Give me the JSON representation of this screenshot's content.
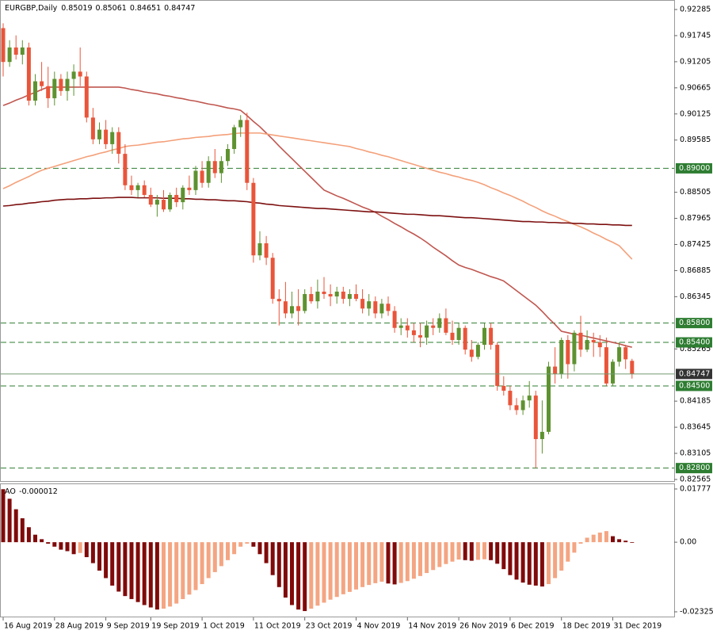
{
  "chart_data": [
    {
      "type": "candlestick",
      "symbol": "EURGBP,Daily",
      "categories": [
        "16 Aug 2019",
        null,
        null,
        null,
        null,
        null,
        null,
        null,
        "28 Aug 2019",
        null,
        null,
        null,
        null,
        null,
        null,
        null,
        "9 Sep 2019",
        null,
        null,
        null,
        null,
        null,
        null,
        "19 Sep 2019",
        null,
        null,
        null,
        null,
        null,
        null,
        null,
        "1 Oct 2019",
        null,
        null,
        null,
        null,
        null,
        null,
        null,
        "11 Oct 2019",
        null,
        null,
        null,
        null,
        null,
        null,
        null,
        "23 Oct 2019",
        null,
        null,
        null,
        null,
        null,
        null,
        null,
        "4 Nov 2019",
        null,
        null,
        null,
        null,
        null,
        null,
        null,
        "14 Nov 2019",
        null,
        null,
        null,
        null,
        null,
        null,
        null,
        "26 Nov 2019",
        null,
        null,
        null,
        null,
        null,
        null,
        null,
        "6 Dec 2019",
        null,
        null,
        null,
        null,
        null,
        null,
        null,
        "18 Dec 2019",
        null,
        null,
        null,
        null,
        null,
        null,
        null,
        "31 Dec 2019",
        null,
        null,
        null
      ],
      "ohlc": [
        [
          0.919,
          0.92,
          0.909,
          0.912
        ],
        [
          0.912,
          0.9165,
          0.911,
          0.915
        ],
        [
          0.915,
          0.9175,
          0.9125,
          0.9135
        ],
        [
          0.9135,
          0.9165,
          0.9115,
          0.915
        ],
        [
          0.915,
          0.916,
          0.903,
          0.904
        ],
        [
          0.904,
          0.9095,
          0.903,
          0.908
        ],
        [
          0.908,
          0.912,
          0.906,
          0.907
        ],
        [
          0.907,
          0.911,
          0.9025,
          0.9045
        ],
        [
          0.9045,
          0.91,
          0.903,
          0.9085
        ],
        [
          0.9085,
          0.9095,
          0.905,
          0.906
        ],
        [
          0.906,
          0.91,
          0.904,
          0.9085
        ],
        [
          0.9085,
          0.9115,
          0.905,
          0.91
        ],
        [
          0.91,
          0.915,
          0.907,
          0.909
        ],
        [
          0.909,
          0.91,
          0.8995,
          0.9005
        ],
        [
          0.9005,
          0.9025,
          0.895,
          0.896
        ],
        [
          0.896,
          0.8995,
          0.895,
          0.898
        ],
        [
          0.898,
          0.9,
          0.894,
          0.895
        ],
        [
          0.895,
          0.8985,
          0.893,
          0.8975
        ],
        [
          0.8975,
          0.8985,
          0.891,
          0.893
        ],
        [
          0.893,
          0.895,
          0.8855,
          0.8865
        ],
        [
          0.8865,
          0.8885,
          0.8845,
          0.8855
        ],
        [
          0.8855,
          0.887,
          0.884,
          0.8865
        ],
        [
          0.8865,
          0.8875,
          0.884,
          0.8845
        ],
        [
          0.8845,
          0.886,
          0.882,
          0.8825
        ],
        [
          0.8825,
          0.8845,
          0.88,
          0.8835
        ],
        [
          0.8835,
          0.8855,
          0.881,
          0.8815
        ],
        [
          0.8815,
          0.885,
          0.881,
          0.8845
        ],
        [
          0.8845,
          0.886,
          0.882,
          0.883
        ],
        [
          0.883,
          0.8865,
          0.8815,
          0.886
        ],
        [
          0.886,
          0.8885,
          0.8845,
          0.8855
        ],
        [
          0.8855,
          0.8905,
          0.8845,
          0.8895
        ],
        [
          0.8895,
          0.8915,
          0.886,
          0.887
        ],
        [
          0.887,
          0.8925,
          0.886,
          0.8915
        ],
        [
          0.8915,
          0.894,
          0.888,
          0.889
        ],
        [
          0.889,
          0.8925,
          0.887,
          0.8915
        ],
        [
          0.8915,
          0.895,
          0.8905,
          0.894
        ],
        [
          0.894,
          0.899,
          0.893,
          0.8985
        ],
        [
          0.8985,
          0.901,
          0.8965,
          0.9
        ],
        [
          0.9,
          0.9015,
          0.8855,
          0.887
        ],
        [
          0.887,
          0.888,
          0.8705,
          0.872
        ],
        [
          0.872,
          0.877,
          0.871,
          0.8745
        ],
        [
          0.8745,
          0.876,
          0.87,
          0.8715
        ],
        [
          0.8715,
          0.8725,
          0.862,
          0.863
        ],
        [
          0.863,
          0.865,
          0.8575,
          0.8625
        ],
        [
          0.8625,
          0.8665,
          0.859,
          0.86
        ],
        [
          0.86,
          0.8645,
          0.859,
          0.8615
        ],
        [
          0.8615,
          0.865,
          0.8575,
          0.8605
        ],
        [
          0.8605,
          0.865,
          0.86,
          0.864
        ],
        [
          0.864,
          0.8655,
          0.862,
          0.8625
        ],
        [
          0.8625,
          0.867,
          0.861,
          0.8645
        ],
        [
          0.8645,
          0.8675,
          0.863,
          0.864
        ],
        [
          0.864,
          0.866,
          0.8615,
          0.8635
        ],
        [
          0.8635,
          0.8655,
          0.862,
          0.8645
        ],
        [
          0.8645,
          0.8655,
          0.862,
          0.863
        ],
        [
          0.863,
          0.865,
          0.8615,
          0.864
        ],
        [
          0.864,
          0.866,
          0.8625,
          0.863
        ],
        [
          0.863,
          0.865,
          0.86,
          0.861
        ],
        [
          0.861,
          0.864,
          0.8595,
          0.8625
        ],
        [
          0.8625,
          0.8635,
          0.859,
          0.86
        ],
        [
          0.86,
          0.863,
          0.859,
          0.862
        ],
        [
          0.862,
          0.8635,
          0.8595,
          0.8605
        ],
        [
          0.8605,
          0.8615,
          0.856,
          0.857
        ],
        [
          0.857,
          0.859,
          0.8555,
          0.8575
        ],
        [
          0.8575,
          0.859,
          0.855,
          0.8565
        ],
        [
          0.8565,
          0.858,
          0.854,
          0.8555
        ],
        [
          0.8555,
          0.858,
          0.853,
          0.855
        ],
        [
          0.855,
          0.8585,
          0.8535,
          0.8575
        ],
        [
          0.8575,
          0.859,
          0.8555,
          0.857
        ],
        [
          0.857,
          0.86,
          0.856,
          0.859
        ],
        [
          0.859,
          0.861,
          0.8555,
          0.856
        ],
        [
          0.856,
          0.8585,
          0.8535,
          0.8545
        ],
        [
          0.8545,
          0.858,
          0.8535,
          0.857
        ],
        [
          0.857,
          0.8575,
          0.8515,
          0.8525
        ],
        [
          0.8525,
          0.8545,
          0.85,
          0.851
        ],
        [
          0.851,
          0.854,
          0.8505,
          0.8535
        ],
        [
          0.8535,
          0.858,
          0.8525,
          0.857
        ],
        [
          0.857,
          0.858,
          0.8525,
          0.8535
        ],
        [
          0.8535,
          0.854,
          0.844,
          0.845
        ],
        [
          0.845,
          0.847,
          0.843,
          0.844
        ],
        [
          0.844,
          0.845,
          0.84,
          0.841
        ],
        [
          0.841,
          0.8425,
          0.839,
          0.84
        ],
        [
          0.84,
          0.843,
          0.839,
          0.842
        ],
        [
          0.842,
          0.846,
          0.8405,
          0.843
        ],
        [
          0.843,
          0.844,
          0.828,
          0.834
        ],
        [
          0.834,
          0.842,
          0.831,
          0.8355
        ],
        [
          0.8355,
          0.85,
          0.835,
          0.849
        ],
        [
          0.849,
          0.853,
          0.8455,
          0.8475
        ],
        [
          0.8475,
          0.855,
          0.8465,
          0.8545
        ],
        [
          0.8545,
          0.8555,
          0.8465,
          0.8495
        ],
        [
          0.8495,
          0.8565,
          0.848,
          0.856
        ],
        [
          0.856,
          0.8595,
          0.851,
          0.8525
        ],
        [
          0.8525,
          0.8565,
          0.852,
          0.8545
        ],
        [
          0.8545,
          0.856,
          0.851,
          0.854
        ],
        [
          0.854,
          0.8555,
          0.851,
          0.853
        ],
        [
          0.853,
          0.855,
          0.845,
          0.8455
        ],
        [
          0.8455,
          0.8505,
          0.845,
          0.85
        ],
        [
          0.85,
          0.854,
          0.849,
          0.853
        ],
        [
          0.853,
          0.8535,
          0.8485,
          0.8505
        ],
        [
          0.85019,
          0.85061,
          0.84651,
          0.84747
        ]
      ],
      "up_color": "#5e9230",
      "down_color": "#e9553a",
      "series": [
        {
          "color": "#c0564f",
          "values": [
            0.903,
            0.9035,
            0.9041,
            0.9046,
            0.9052,
            0.9057,
            0.9063,
            0.9068,
            0.9068,
            0.9068,
            0.9068,
            0.9068,
            0.9068,
            0.9068,
            0.9068,
            0.9068,
            0.9068,
            0.9068,
            0.9068,
            0.9066,
            0.9063,
            0.9061,
            0.9058,
            0.9056,
            0.9054,
            0.9051,
            0.9049,
            0.9046,
            0.9044,
            0.9041,
            0.9039,
            0.9036,
            0.9033,
            0.9031,
            0.9028,
            0.9025,
            0.9023,
            0.902,
            0.9009,
            0.8997,
            0.8986,
            0.8973,
            0.896,
            0.8946,
            0.8933,
            0.892,
            0.8907,
            0.8894,
            0.8881,
            0.8868,
            0.8855,
            0.8849,
            0.8843,
            0.8838,
            0.8832,
            0.8826,
            0.882,
            0.8815,
            0.8809,
            0.8801,
            0.8794,
            0.8786,
            0.8779,
            0.8771,
            0.8764,
            0.8756,
            0.8747,
            0.8737,
            0.8728,
            0.8719,
            0.8709,
            0.87,
            0.8695,
            0.8691,
            0.8686,
            0.8681,
            0.8676,
            0.8672,
            0.8667,
            0.8657,
            0.8647,
            0.8637,
            0.8627,
            0.8617,
            0.8604,
            0.859,
            0.8577,
            0.8563,
            0.856,
            0.8557,
            0.8555,
            0.8552,
            0.8549,
            0.8546,
            0.8543,
            0.854,
            0.8537,
            0.8533,
            0.853
          ]
        },
        {
          "color": "#f4a07a",
          "values": [
            0.8858,
            0.8864,
            0.8871,
            0.8877,
            0.8883,
            0.889,
            0.8896,
            0.89,
            0.8904,
            0.8908,
            0.8912,
            0.8916,
            0.892,
            0.8924,
            0.8927,
            0.8931,
            0.8934,
            0.8938,
            0.8941,
            0.8945,
            0.8947,
            0.8948,
            0.895,
            0.8952,
            0.8954,
            0.8955,
            0.8957,
            0.8959,
            0.8961,
            0.8962,
            0.8964,
            0.8965,
            0.8966,
            0.8968,
            0.8969,
            0.897,
            0.8972,
            0.8973,
            0.8973,
            0.8973,
            0.8973,
            0.8971,
            0.8969,
            0.8967,
            0.8965,
            0.8963,
            0.8961,
            0.8959,
            0.8957,
            0.8955,
            0.8953,
            0.8951,
            0.8949,
            0.8947,
            0.8945,
            0.8941,
            0.8938,
            0.8934,
            0.8931,
            0.8927,
            0.8924,
            0.892,
            0.8916,
            0.8912,
            0.8908,
            0.8904,
            0.89,
            0.8896,
            0.8892,
            0.8889,
            0.8885,
            0.8882,
            0.8878,
            0.8875,
            0.8871,
            0.8866,
            0.886,
            0.8855,
            0.8849,
            0.8844,
            0.8838,
            0.8832,
            0.8825,
            0.8819,
            0.8812,
            0.8806,
            0.8801,
            0.8795,
            0.879,
            0.8784,
            0.8779,
            0.8773,
            0.8766,
            0.876,
            0.8753,
            0.8747,
            0.874,
            0.8726,
            0.8712
          ]
        },
        {
          "color": "#7d1010",
          "values": [
            0.8822,
            0.8823,
            0.8825,
            0.8826,
            0.8828,
            0.8829,
            0.8831,
            0.8832,
            0.8834,
            0.8835,
            0.8836,
            0.8836,
            0.8837,
            0.8837,
            0.8838,
            0.8838,
            0.8839,
            0.8839,
            0.884,
            0.884,
            0.884,
            0.8839,
            0.8839,
            0.8839,
            0.8839,
            0.8838,
            0.8838,
            0.8838,
            0.8837,
            0.8837,
            0.8836,
            0.8836,
            0.8835,
            0.8835,
            0.8834,
            0.8833,
            0.8833,
            0.8832,
            0.8831,
            0.8829,
            0.8828,
            0.8826,
            0.8825,
            0.8823,
            0.8822,
            0.8821,
            0.882,
            0.8819,
            0.8818,
            0.8817,
            0.8817,
            0.8816,
            0.8815,
            0.8814,
            0.8813,
            0.8812,
            0.8811,
            0.881,
            0.881,
            0.8809,
            0.8808,
            0.8807,
            0.8806,
            0.8805,
            0.8805,
            0.8804,
            0.8803,
            0.8802,
            0.8802,
            0.8801,
            0.88,
            0.8799,
            0.8798,
            0.8798,
            0.8797,
            0.8796,
            0.8795,
            0.8794,
            0.8793,
            0.8792,
            0.8791,
            0.879,
            0.879,
            0.8789,
            0.8789,
            0.8788,
            0.8788,
            0.8787,
            0.8787,
            0.8786,
            0.8786,
            0.8785,
            0.8785,
            0.8784,
            0.8784,
            0.8783,
            0.8783,
            0.8782,
            0.8782
          ]
        }
      ],
      "ylim": [
        0.82565,
        0.92285
      ],
      "yticks": [
        0.92285,
        0.91745,
        0.91205,
        0.90665,
        0.90125,
        0.89585,
        0.88505,
        0.87965,
        0.87425,
        0.86885,
        0.86345,
        0.85265,
        0.84185,
        0.83645,
        0.83105,
        0.82565
      ],
      "levels": [
        {
          "value": 0.89,
          "label": "0.89000"
        },
        {
          "value": 0.858,
          "label": "0.85800"
        },
        {
          "value": 0.854,
          "label": "0.85400"
        },
        {
          "value": 0.845,
          "label": "0.84500"
        },
        {
          "value": 0.828,
          "label": "0.82800"
        }
      ],
      "level_color": "#2e7d32",
      "last_price_color": "#333333"
    },
    {
      "type": "bar",
      "name": "AO",
      "values": [
        0.0177,
        0.0145,
        0.011,
        0.008,
        0.005,
        0.0025,
        0.001,
        -0.0005,
        -0.0015,
        -0.0025,
        -0.003,
        -0.004,
        -0.0036,
        -0.005,
        -0.007,
        -0.0095,
        -0.012,
        -0.0145,
        -0.0165,
        -0.018,
        -0.019,
        -0.02,
        -0.021,
        -0.0218,
        -0.0225,
        -0.0222,
        -0.0215,
        -0.0205,
        -0.019,
        -0.0175,
        -0.016,
        -0.014,
        -0.012,
        -0.01,
        -0.008,
        -0.006,
        -0.004,
        -0.0015,
        -0.0005,
        -0.0015,
        -0.004,
        -0.007,
        -0.011,
        -0.015,
        -0.0185,
        -0.021,
        -0.0225,
        -0.023,
        -0.0222,
        -0.0212,
        -0.0202,
        -0.0192,
        -0.0183,
        -0.0174,
        -0.0166,
        -0.0158,
        -0.015,
        -0.0143,
        -0.0137,
        -0.0132,
        -0.0138,
        -0.0141,
        -0.0136,
        -0.013,
        -0.0122,
        -0.0113,
        -0.0103,
        -0.0093,
        -0.0083,
        -0.0073,
        -0.0065,
        -0.0058,
        -0.006,
        -0.0062,
        -0.0059,
        -0.0057,
        -0.006,
        -0.0072,
        -0.009,
        -0.011,
        -0.0125,
        -0.0135,
        -0.0142,
        -0.0145,
        -0.0148,
        -0.014,
        -0.012,
        -0.0095,
        -0.0065,
        -0.0035,
        -0.0005,
        0.0015,
        0.0025,
        0.0032,
        0.0037,
        0.002,
        0.001,
        0.0005,
        -1.2e-05
      ],
      "up_color": "#f4a582",
      "down_color": "#800a0a",
      "ylim": [
        -0.023254,
        0.01777
      ],
      "yticks": [
        0.01777,
        {
          "value": 0,
          "label": "0.00"
        },
        -0.023254
      ]
    }
  ]
}
